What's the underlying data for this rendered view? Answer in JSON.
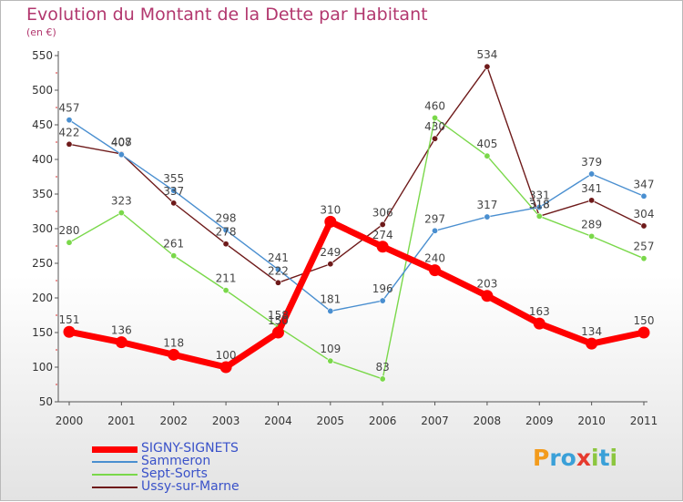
{
  "chart_data": {
    "type": "line",
    "title": "Evolution du Montant de la Dette par Habitant",
    "subtitle": "(en €)",
    "categories": [
      "2000",
      "2001",
      "2002",
      "2003",
      "2004",
      "2005",
      "2006",
      "2007",
      "2008",
      "2009",
      "2010",
      "2011"
    ],
    "ylim": [
      50,
      550
    ],
    "yticks": [
      50,
      100,
      150,
      200,
      250,
      300,
      350,
      400,
      450,
      500,
      550
    ],
    "grid": false,
    "legend_position": "bottom-left",
    "series": [
      {
        "name": "SIGNY-SIGNETS",
        "color": "#ff0000",
        "values": [
          151,
          136,
          118,
          100,
          150,
          310,
          274,
          240,
          203,
          163,
          134,
          150
        ]
      },
      {
        "name": "Sammeron",
        "color": "#4a8fd0",
        "values": [
          457,
          407,
          355,
          298,
          241,
          181,
          196,
          297,
          317,
          331,
          379,
          347
        ]
      },
      {
        "name": "Sept-Sorts",
        "color": "#7ad84a",
        "values": [
          280,
          323,
          261,
          211,
          158,
          109,
          83,
          460,
          405,
          318,
          289,
          257
        ]
      },
      {
        "name": "Ussy-sur-Marne",
        "color": "#6e1a1a",
        "values": [
          422,
          408,
          337,
          278,
          222,
          249,
          306,
          430,
          534,
          318,
          341,
          304
        ]
      }
    ]
  },
  "logo": {
    "letters": [
      "P",
      "r",
      "o",
      "x",
      "i",
      "t",
      "i"
    ],
    "colors": [
      "#f39b1c",
      "#3aa0d8",
      "#3aa0d8",
      "#e63a2e",
      "#8cc63f",
      "#3aa0d8",
      "#8cc63f"
    ]
  }
}
